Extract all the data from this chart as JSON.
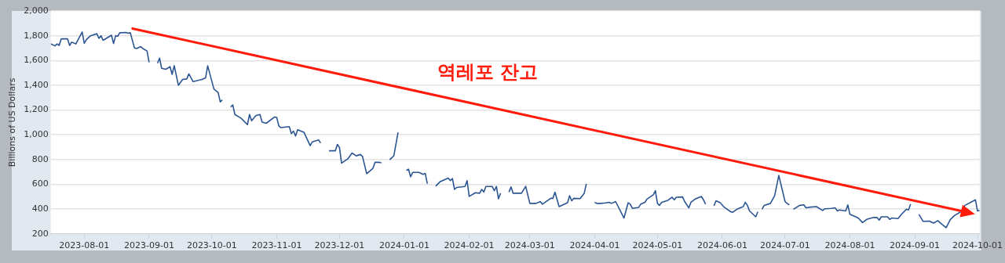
{
  "chart_data": {
    "type": "line",
    "ylabel": "Billions of US Dollars",
    "annotations": [
      "역레포 잔고"
    ],
    "xlim": [
      "2023-07-16",
      "2024-10-02"
    ],
    "xticks": [
      "2023-08-01",
      "2023-09-01",
      "2023-10-01",
      "2023-11-01",
      "2023-12-01",
      "2024-01-01",
      "2024-02-01",
      "2024-03-01",
      "2024-04-01",
      "2024-05-01",
      "2024-06-01",
      "2024-07-01",
      "2024-08-01",
      "2024-09-01",
      "2024-10-01"
    ],
    "ylim": [
      200,
      2000
    ],
    "yticks": [
      {
        "value": 200,
        "label": "200"
      },
      {
        "value": 400,
        "label": "400"
      },
      {
        "value": 600,
        "label": "600"
      },
      {
        "value": 800,
        "label": "800"
      },
      {
        "value": 1000,
        "label": "1,000"
      },
      {
        "value": 1200,
        "label": "1,200"
      },
      {
        "value": 1400,
        "label": "1,400"
      },
      {
        "value": 1600,
        "label": "1,600"
      },
      {
        "value": 1800,
        "label": "1,800"
      },
      {
        "value": 2000,
        "label": "2,000"
      }
    ],
    "grid": "y",
    "legend": false,
    "marker": "none",
    "line_style": "solid",
    "series": [
      {
        "color": "#2b5592",
        "x": [
          "2023-07-16",
          "2023-07-18",
          "2023-07-19",
          "2023-07-20",
          "2023-07-21",
          "2023-07-23",
          "2023-07-24",
          "2023-07-25",
          "2023-07-26",
          "2023-07-28",
          "2023-07-31",
          "2023-08-01",
          "2023-08-02",
          "2023-08-04",
          "2023-08-07",
          "2023-08-08",
          "2023-08-09",
          "2023-08-10",
          "2023-08-14",
          "2023-08-15",
          "2023-08-16",
          "2023-08-17",
          "2023-08-18",
          "2023-08-21",
          "2023-08-22",
          "2023-08-23",
          "2023-08-25",
          "2023-08-26",
          "2023-08-28",
          "2023-08-29",
          "2023-08-31",
          "2023-09-01",
          "2023-09-03",
          "2023-09-05",
          "2023-09-06",
          "2023-09-07",
          "2023-09-09",
          "2023-09-11",
          "2023-09-12",
          "2023-09-13",
          "2023-09-15",
          "2023-09-17",
          "2023-09-19",
          "2023-09-20",
          "2023-09-22",
          "2023-09-26",
          "2023-09-28",
          "2023-09-29",
          "2023-10-02",
          "2023-10-04",
          "2023-10-05",
          "2023-10-06",
          "2023-10-08",
          "2023-10-10",
          "2023-10-11",
          "2023-10-12",
          "2023-10-15",
          "2023-10-18",
          "2023-10-19",
          "2023-10-20",
          "2023-10-22",
          "2023-10-24",
          "2023-10-25",
          "2023-10-27",
          "2023-10-31",
          "2023-11-01",
          "2023-11-02",
          "2023-11-03",
          "2023-11-07",
          "2023-11-08",
          "2023-11-09",
          "2023-11-10",
          "2023-11-11",
          "2023-11-14",
          "2023-11-17",
          "2023-11-18",
          "2023-11-21",
          "2023-11-22",
          "2023-11-24",
          "2023-11-26",
          "2023-11-29",
          "2023-11-30",
          "2023-12-01",
          "2023-12-02",
          "2023-12-05",
          "2023-12-07",
          "2023-12-09",
          "2023-12-11",
          "2023-12-12",
          "2023-12-14",
          "2023-12-17",
          "2023-12-18",
          "2023-12-20",
          "2023-12-21",
          "2023-12-23",
          "2023-12-25",
          "2023-12-27",
          "2023-12-29",
          "2023-12-31",
          "2024-01-02",
          "2024-01-03",
          "2024-01-04",
          "2024-01-05",
          "2024-01-08",
          "2024-01-10",
          "2024-01-11",
          "2024-01-12",
          "2024-01-14",
          "2024-01-16",
          "2024-01-18",
          "2024-01-22",
          "2024-01-23",
          "2024-01-24",
          "2024-01-25",
          "2024-01-26",
          "2024-01-30",
          "2024-01-31",
          "2024-02-01",
          "2024-02-04",
          "2024-02-06",
          "2024-02-07",
          "2024-02-08",
          "2024-02-09",
          "2024-02-12",
          "2024-02-13",
          "2024-02-14",
          "2024-02-15",
          "2024-02-16",
          "2024-02-18",
          "2024-02-20",
          "2024-02-21",
          "2024-02-22",
          "2024-02-26",
          "2024-02-28",
          "2024-03-01",
          "2024-03-04",
          "2024-03-06",
          "2024-03-07",
          "2024-03-11",
          "2024-03-12",
          "2024-03-13",
          "2024-03-15",
          "2024-03-19",
          "2024-03-20",
          "2024-03-21",
          "2024-03-22",
          "2024-03-25",
          "2024-03-27",
          "2024-03-28",
          "2024-03-30",
          "2024-04-01",
          "2024-04-02",
          "2024-04-04",
          "2024-04-06",
          "2024-04-08",
          "2024-04-09",
          "2024-04-11",
          "2024-04-15",
          "2024-04-17",
          "2024-04-18",
          "2024-04-19",
          "2024-04-22",
          "2024-04-23",
          "2024-04-25",
          "2024-04-26",
          "2024-04-29",
          "2024-04-30",
          "2024-05-01",
          "2024-05-02",
          "2024-05-03",
          "2024-05-06",
          "2024-05-08",
          "2024-05-09",
          "2024-05-10",
          "2024-05-13",
          "2024-05-14",
          "2024-05-16",
          "2024-05-17",
          "2024-05-19",
          "2024-05-22",
          "2024-05-23",
          "2024-05-24",
          "2024-05-26",
          "2024-05-28",
          "2024-05-29",
          "2024-05-31",
          "2024-06-02",
          "2024-06-05",
          "2024-06-06",
          "2024-06-08",
          "2024-06-10",
          "2024-06-11",
          "2024-06-12",
          "2024-06-13",
          "2024-06-14",
          "2024-06-17",
          "2024-06-18",
          "2024-06-19",
          "2024-06-20",
          "2024-06-21",
          "2024-06-24",
          "2024-06-26",
          "2024-06-28",
          "2024-07-01",
          "2024-07-02",
          "2024-07-03",
          "2024-07-04",
          "2024-07-05",
          "2024-07-08",
          "2024-07-10",
          "2024-07-11",
          "2024-07-13",
          "2024-07-16",
          "2024-07-19",
          "2024-07-20",
          "2024-07-23",
          "2024-07-25",
          "2024-07-26",
          "2024-07-27",
          "2024-07-30",
          "2024-07-31",
          "2024-08-01",
          "2024-08-05",
          "2024-08-07",
          "2024-08-09",
          "2024-08-12",
          "2024-08-14",
          "2024-08-15",
          "2024-08-16",
          "2024-08-19",
          "2024-08-20",
          "2024-08-21",
          "2024-08-24",
          "2024-08-26",
          "2024-08-28",
          "2024-08-29",
          "2024-08-30",
          "2024-09-01",
          "2024-09-03",
          "2024-09-05",
          "2024-09-08",
          "2024-09-10",
          "2024-09-12",
          "2024-09-14",
          "2024-09-16",
          "2024-09-18",
          "2024-09-20",
          "2024-09-23",
          "2024-09-25",
          "2024-09-30",
          "2024-10-01",
          "2024-10-02"
        ],
        "values": [
          1734,
          1718,
          1734,
          1722,
          1775,
          1775,
          1775,
          1722,
          1748,
          1734,
          1830,
          1738,
          1769,
          1800,
          1816,
          1779,
          1800,
          1763,
          1804,
          1738,
          1800,
          1796,
          1824,
          1826,
          1820,
          1824,
          1701,
          1697,
          1712,
          1697,
          1677,
          1585,
          null,
          1578,
          1619,
          1537,
          1529,
          1550,
          1488,
          1558,
          1400,
          1447,
          1451,
          1492,
          1430,
          1446,
          1460,
          1557,
          1369,
          1342,
          1266,
          1282,
          null,
          1225,
          1241,
          1164,
          1133,
          1082,
          1164,
          1113,
          1154,
          1164,
          1103,
          1093,
          1144,
          1140,
          1072,
          1058,
          1066,
          1010,
          1030,
          990,
          1041,
          1021,
          912,
          943,
          959,
          934,
          null,
          871,
          871,
          922,
          898,
          771,
          806,
          853,
          830,
          841,
          825,
          686,
          729,
          778,
          778,
          774,
          null,
          798,
          831,
          1020,
          null,
          712,
          722,
          661,
          696,
          696,
          681,
          688,
          606,
          null,
          585,
          620,
          651,
          630,
          647,
          559,
          575,
          583,
          630,
          503,
          532,
          528,
          559,
          538,
          583,
          583,
          548,
          583,
          483,
          528,
          null,
          538,
          579,
          528,
          528,
          584,
          446,
          446,
          461,
          440,
          487,
          487,
          537,
          420,
          451,
          508,
          467,
          487,
          485,
          528,
          604,
          null,
          455,
          446,
          446,
          450,
          455,
          446,
          461,
          328,
          451,
          440,
          406,
          414,
          440,
          455,
          481,
          516,
          549,
          446,
          430,
          455,
          471,
          496,
          475,
          496,
          498,
          461,
          410,
          455,
          481,
          502,
          475,
          440,
          null,
          426,
          467,
          451,
          414,
          379,
          375,
          399,
          414,
          420,
          455,
          430,
          385,
          338,
          379,
          null,
          399,
          430,
          446,
          508,
          672,
          461,
          446,
          434,
          null,
          399,
          430,
          434,
          410,
          416,
          420,
          389,
          403,
          406,
          410,
          385,
          393,
          385,
          434,
          358,
          328,
          291,
          317,
          332,
          332,
          311,
          338,
          338,
          317,
          328,
          324,
          365,
          399,
          393,
          440,
          null,
          358,
          301,
          303,
          287,
          307,
          277,
          250,
          317,
          348,
          379,
          430,
          475,
          385,
          389
        ]
      }
    ]
  }
}
